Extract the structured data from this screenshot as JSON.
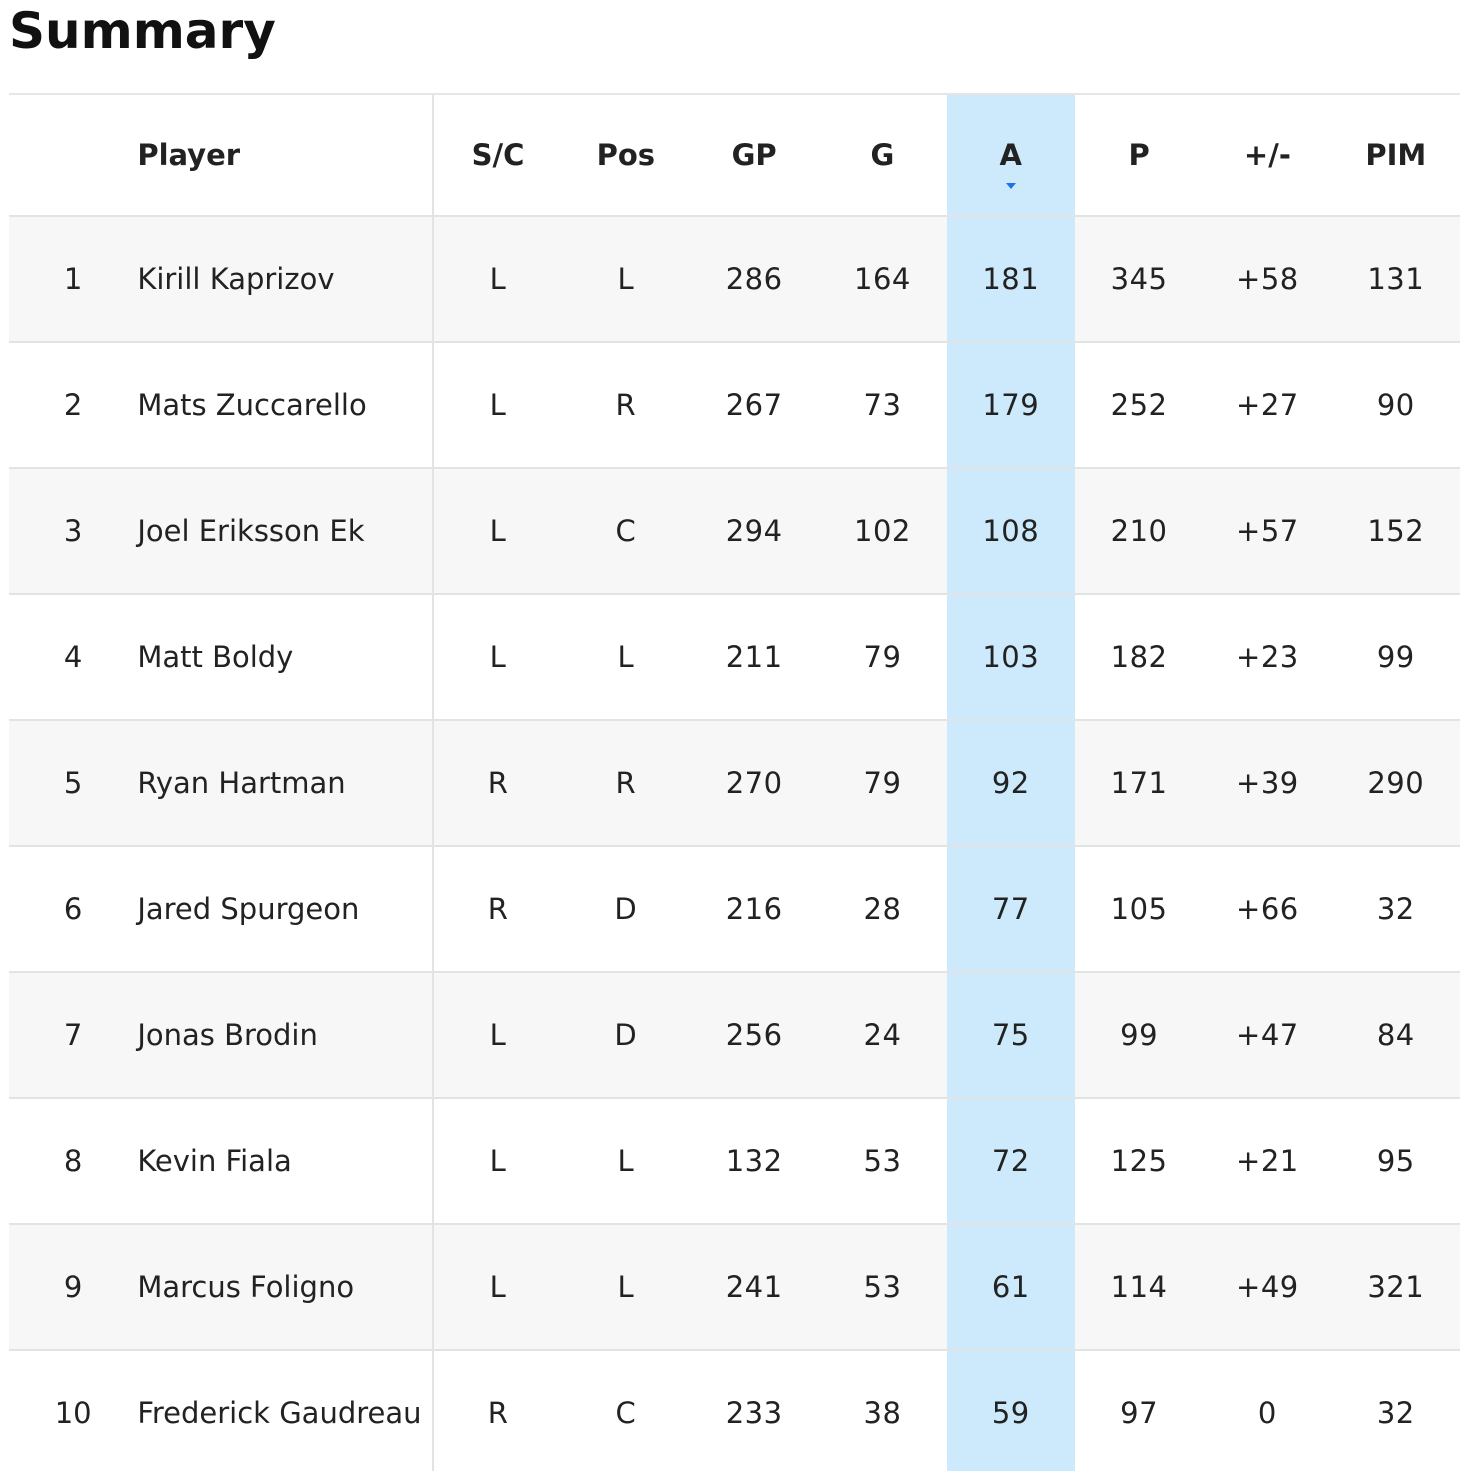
{
  "page": {
    "title": "Summary"
  },
  "table": {
    "columns": [
      {
        "key": "rank",
        "label": ""
      },
      {
        "key": "player",
        "label": "Player"
      },
      {
        "key": "sc",
        "label": "S/C"
      },
      {
        "key": "pos",
        "label": "Pos"
      },
      {
        "key": "gp",
        "label": "GP"
      },
      {
        "key": "g",
        "label": "G"
      },
      {
        "key": "a",
        "label": "A"
      },
      {
        "key": "p",
        "label": "P"
      },
      {
        "key": "pm",
        "label": "+/-"
      },
      {
        "key": "pim",
        "label": "PIM"
      }
    ],
    "sorted_column": "A",
    "sort_direction": "descending",
    "sort_indicator_icon": "caret-down-icon",
    "colors": {
      "sorted_column_bg": "#cdeafc",
      "positive_plus_minus": "#3f9a40",
      "sort_arrow": "#1a73e8"
    },
    "rows": [
      {
        "rank": "1",
        "player": "Kirill Kaprizov",
        "sc": "L",
        "pos": "L",
        "gp": "286",
        "g": "164",
        "a": "181",
        "p": "345",
        "pm": "+58",
        "pim": "131"
      },
      {
        "rank": "2",
        "player": "Mats Zuccarello",
        "sc": "L",
        "pos": "R",
        "gp": "267",
        "g": "73",
        "a": "179",
        "p": "252",
        "pm": "+27",
        "pim": "90"
      },
      {
        "rank": "3",
        "player": "Joel Eriksson Ek",
        "sc": "L",
        "pos": "C",
        "gp": "294",
        "g": "102",
        "a": "108",
        "p": "210",
        "pm": "+57",
        "pim": "152"
      },
      {
        "rank": "4",
        "player": "Matt Boldy",
        "sc": "L",
        "pos": "L",
        "gp": "211",
        "g": "79",
        "a": "103",
        "p": "182",
        "pm": "+23",
        "pim": "99"
      },
      {
        "rank": "5",
        "player": "Ryan Hartman",
        "sc": "R",
        "pos": "R",
        "gp": "270",
        "g": "79",
        "a": "92",
        "p": "171",
        "pm": "+39",
        "pim": "290"
      },
      {
        "rank": "6",
        "player": "Jared Spurgeon",
        "sc": "R",
        "pos": "D",
        "gp": "216",
        "g": "28",
        "a": "77",
        "p": "105",
        "pm": "+66",
        "pim": "32"
      },
      {
        "rank": "7",
        "player": "Jonas Brodin",
        "sc": "L",
        "pos": "D",
        "gp": "256",
        "g": "24",
        "a": "75",
        "p": "99",
        "pm": "+47",
        "pim": "84"
      },
      {
        "rank": "8",
        "player": "Kevin Fiala",
        "sc": "L",
        "pos": "L",
        "gp": "132",
        "g": "53",
        "a": "72",
        "p": "125",
        "pm": "+21",
        "pim": "95"
      },
      {
        "rank": "9",
        "player": "Marcus Foligno",
        "sc": "L",
        "pos": "L",
        "gp": "241",
        "g": "53",
        "a": "61",
        "p": "114",
        "pm": "+49",
        "pim": "321"
      },
      {
        "rank": "10",
        "player": "Frederick Gaudreau",
        "sc": "R",
        "pos": "C",
        "gp": "233",
        "g": "38",
        "a": "59",
        "p": "97",
        "pm": "0",
        "pim": "32"
      }
    ]
  }
}
